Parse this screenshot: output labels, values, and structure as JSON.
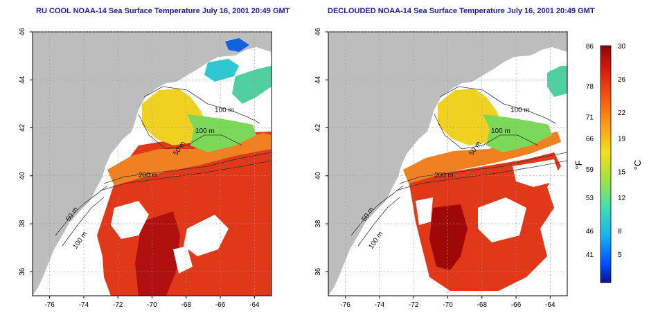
{
  "panels": [
    {
      "title": "RU COOL NOAA-14 Sea Surface Temperature July 16, 2001 20:49 GMT",
      "contour_labels": [
        "100 m",
        "100 m",
        "50 m",
        "200 m",
        "50 m",
        "100 m"
      ]
    },
    {
      "title": "DECLOUDED NOAA-14 Sea Surface Temperature July 16, 2001 20:49 GMT",
      "contour_labels": [
        "100 m",
        "100 m",
        "50 m",
        "200 m",
        "50 m",
        "100 m"
      ]
    }
  ],
  "axes": {
    "lon_ticks": [
      "-76",
      "-74",
      "-72",
      "-70",
      "-68",
      "-66",
      "-64"
    ],
    "lat_ticks": [
      "36",
      "38",
      "40",
      "42",
      "44",
      "46"
    ],
    "lon_range": [
      -77,
      -63
    ],
    "lat_range": [
      35,
      46
    ]
  },
  "colorbar": {
    "f_unit": "°F",
    "c_unit": "°C",
    "f_labels": [
      "86",
      "78",
      "71",
      "66",
      "59",
      "53",
      "46",
      "41"
    ],
    "c_labels": [
      "30",
      "26",
      "22",
      "19",
      "15",
      "12",
      "8",
      "5"
    ],
    "colors": [
      "#0a1090",
      "#0050ff",
      "#18b4f0",
      "#40e0b0",
      "#a8e040",
      "#f0e020",
      "#f8a018",
      "#f05a10",
      "#d81a10",
      "#8a0808"
    ]
  },
  "colors": {
    "land": "#bdbdbd",
    "no_data": "#ffffff",
    "title": "#1a1aa8"
  }
}
